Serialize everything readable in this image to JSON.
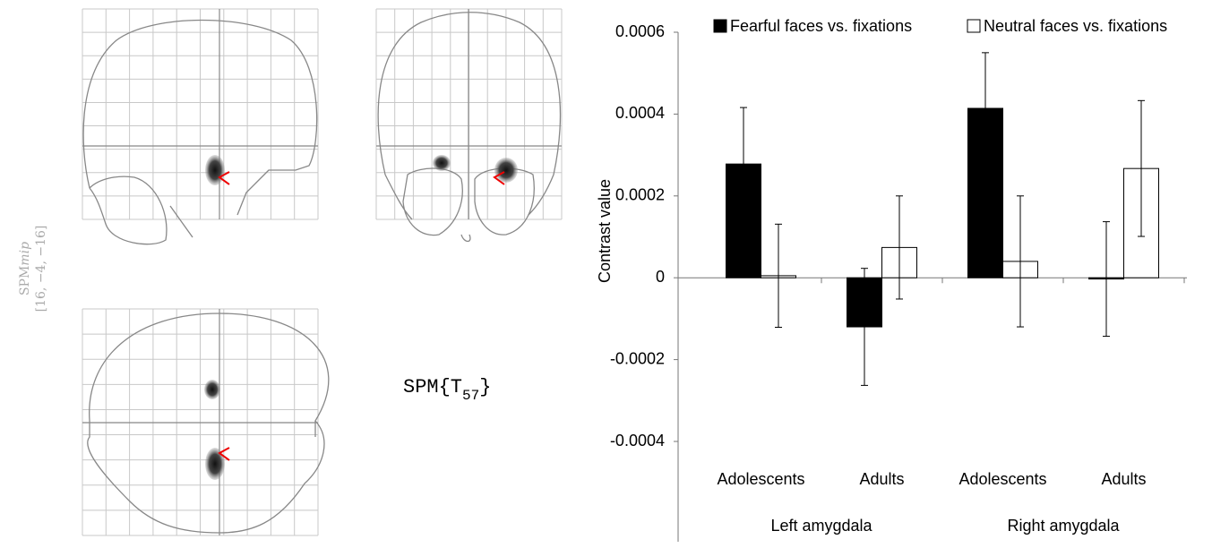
{
  "chart_data": {
    "type": "bar",
    "y_label": "Contrast value",
    "categories": [
      "Adolescents",
      "Adults",
      "Adolescents",
      "Adults"
    ],
    "groups": [
      "Left amygdala",
      "Right amygdala"
    ],
    "series": [
      {
        "name": "Fearful faces vs. fixations",
        "color": "#000000",
        "values": [
          0.000278,
          -0.00012,
          0.000414,
          -3e-06
        ],
        "errors": [
          0.000138,
          0.000143,
          0.000136,
          0.00014
        ]
      },
      {
        "name": "Neutral faces vs. fixations",
        "color": "#ffffff",
        "values": [
          5e-06,
          7.4e-05,
          4e-05,
          0.000267
        ],
        "errors": [
          0.000126,
          0.000126,
          0.00016,
          0.000166
        ]
      }
    ],
    "ylim": [
      -0.0004,
      0.0006
    ],
    "yticks": [
      0.0006,
      0.0004,
      0.0002,
      0,
      -0.0002,
      -0.0004
    ],
    "grid": false,
    "legend": "top"
  },
  "spm_panel": {
    "mip_main": "SPM",
    "mip_italic": "mip",
    "coordinates": "[16, −4, −16]",
    "statistic_prefix": "SPM{T",
    "statistic_df": "57",
    "statistic_suffix": "}"
  }
}
